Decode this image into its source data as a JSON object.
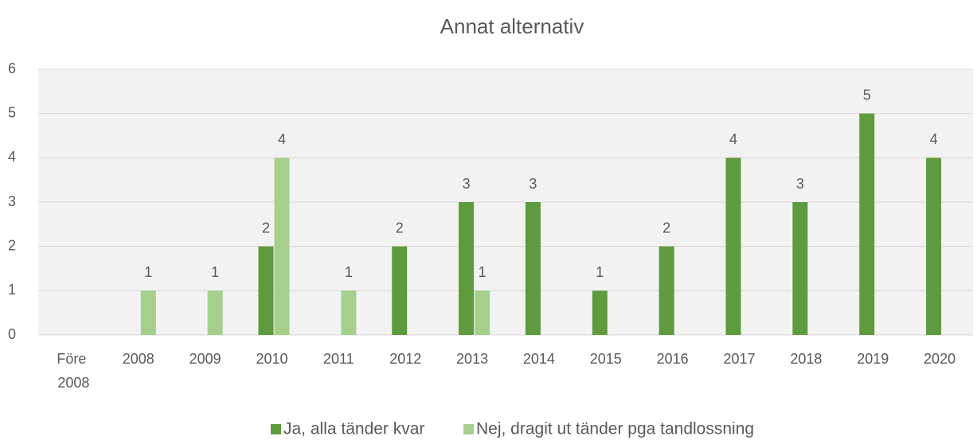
{
  "chart_data": {
    "type": "bar",
    "title": "Annat alternativ",
    "categories": [
      "Före 2008",
      "2008",
      "2009",
      "2010",
      "2011",
      "2012",
      "2013",
      "2014",
      "2015",
      "2016",
      "2017",
      "2018",
      "2019",
      "2020"
    ],
    "series": [
      {
        "name": "Ja, alla tänder kvar",
        "color": "#5e9b3c",
        "values": [
          null,
          null,
          null,
          2,
          null,
          2,
          3,
          3,
          1,
          2,
          4,
          3,
          5,
          4
        ]
      },
      {
        "name": "Nej, dragit ut tänder pga tandlossning",
        "color": "#a5d08c",
        "values": [
          null,
          1,
          1,
          4,
          1,
          null,
          1,
          null,
          null,
          null,
          null,
          null,
          null,
          null
        ]
      }
    ],
    "ylim": [
      0,
      6
    ],
    "yticks": [
      0,
      1,
      2,
      3,
      4,
      5,
      6
    ],
    "grid": true,
    "legend": "bottom"
  }
}
